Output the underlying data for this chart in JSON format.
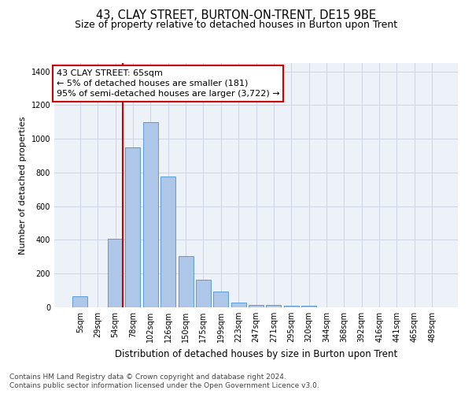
{
  "title": "43, CLAY STREET, BURTON-ON-TRENT, DE15 9BE",
  "subtitle": "Size of property relative to detached houses in Burton upon Trent",
  "xlabel": "Distribution of detached houses by size in Burton upon Trent",
  "ylabel": "Number of detached properties",
  "footnote1": "Contains HM Land Registry data © Crown copyright and database right 2024.",
  "footnote2": "Contains public sector information licensed under the Open Government Licence v3.0.",
  "categories": [
    "5sqm",
    "29sqm",
    "54sqm",
    "78sqm",
    "102sqm",
    "126sqm",
    "150sqm",
    "175sqm",
    "199sqm",
    "223sqm",
    "247sqm",
    "271sqm",
    "295sqm",
    "320sqm",
    "344sqm",
    "368sqm",
    "392sqm",
    "416sqm",
    "441sqm",
    "465sqm",
    "489sqm"
  ],
  "values": [
    65,
    0,
    405,
    950,
    1100,
    775,
    305,
    165,
    95,
    30,
    15,
    15,
    10,
    10,
    0,
    0,
    0,
    0,
    0,
    0,
    0
  ],
  "bar_color": "#aec6e8",
  "bar_edge_color": "#5b9bd5",
  "vline_color": "#cc0000",
  "vline_x_index": 2,
  "annotation_line1": "43 CLAY STREET: 65sqm",
  "annotation_line2": "← 5% of detached houses are smaller (181)",
  "annotation_line3": "95% of semi-detached houses are larger (3,722) →",
  "annotation_box_facecolor": "#ffffff",
  "annotation_box_edgecolor": "#cc0000",
  "ylim_max": 1450,
  "yticks": [
    0,
    200,
    400,
    600,
    800,
    1000,
    1200,
    1400
  ],
  "grid_color": "#ccd5e3",
  "bg_color": "#edf1f8",
  "title_fontsize": 10.5,
  "subtitle_fontsize": 9,
  "annot_fontsize": 8,
  "xlabel_fontsize": 8.5,
  "ylabel_fontsize": 8,
  "tick_labelsize": 7,
  "footnote_fontsize": 6.5
}
